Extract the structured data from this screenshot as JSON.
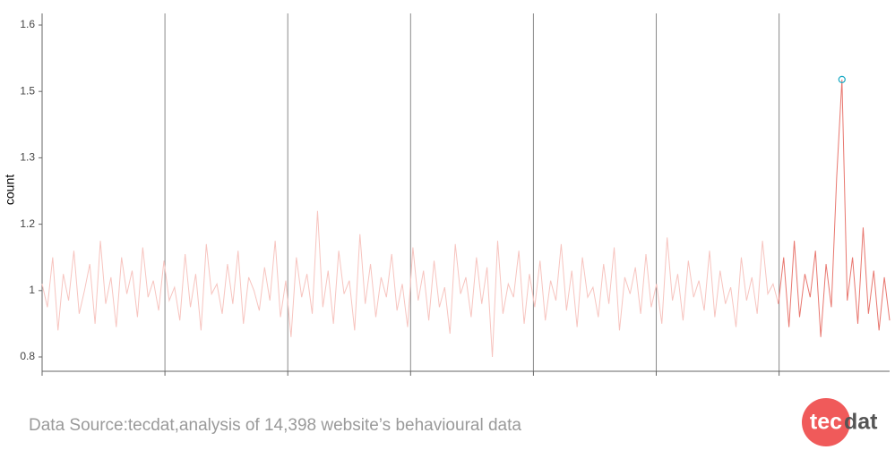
{
  "chart_data": {
    "type": "line",
    "y_label": "count",
    "ylim": [
      0.757,
      1.618
    ],
    "yticks": [
      0.8,
      1,
      1.2,
      1.3,
      1.5,
      1.6
    ],
    "series": [
      {
        "color": "#f7c4bf",
        "values": [
          1.02,
          0.95,
          1.1,
          0.88,
          1.05,
          0.97,
          1.12,
          0.93,
          1.0,
          1.08,
          0.9,
          1.15,
          0.96,
          1.04,
          0.89,
          1.1,
          0.99,
          1.06,
          0.92,
          1.13,
          0.98,
          1.03,
          0.94,
          1.09,
          0.97,
          1.01,
          0.91,
          1.11,
          0.95,
          1.05,
          0.88,
          1.14,
          0.99,
          1.02,
          0.93,
          1.08,
          0.96,
          1.12,
          0.9,
          1.04,
          1.0,
          0.94,
          1.07,
          0.97,
          1.15,
          0.92,
          1.03,
          0.86,
          1.1,
          0.98,
          1.05,
          0.93,
          1.22,
          0.95,
          1.06,
          0.9,
          1.12,
          0.99,
          1.03,
          0.88,
          1.17,
          0.96,
          1.08,
          0.92,
          1.04,
          0.98,
          1.11,
          0.94,
          1.02,
          0.89,
          1.13,
          0.97,
          1.06,
          0.91,
          1.09,
          0.95,
          1.01,
          0.87,
          1.14,
          0.99,
          1.04,
          0.92,
          1.1,
          0.96,
          1.07,
          0.8,
          1.15,
          0.93,
          1.02,
          0.98,
          1.12,
          0.9,
          1.05,
          0.95,
          1.09,
          0.91,
          1.03,
          0.97,
          1.14,
          0.94,
          1.06,
          0.89,
          1.1,
          0.98,
          1.01,
          0.92,
          1.08,
          0.96,
          1.13,
          0.88,
          1.04,
          0.99,
          1.07,
          0.93,
          1.11,
          0.95,
          1.02,
          0.9,
          1.16,
          0.97,
          1.05,
          0.91,
          1.09,
          0.98,
          1.03,
          0.94,
          1.12,
          0.92,
          1.06,
          0.96,
          1.01,
          0.89,
          1.1,
          0.97,
          1.04,
          0.93,
          1.15,
          0.99,
          1.02,
          0.96,
          null,
          null,
          null,
          null,
          null,
          null,
          null,
          null,
          null,
          null,
          null,
          null,
          null,
          null,
          null,
          null,
          null,
          null,
          null,
          null,
          null
        ]
      },
      {
        "color": "#e8776f",
        "highlight_max": {
          "color": "#17a9c4"
        },
        "values": [
          null,
          null,
          null,
          null,
          null,
          null,
          null,
          null,
          null,
          null,
          null,
          null,
          null,
          null,
          null,
          null,
          null,
          null,
          null,
          null,
          null,
          null,
          null,
          null,
          null,
          null,
          null,
          null,
          null,
          null,
          null,
          null,
          null,
          null,
          null,
          null,
          null,
          null,
          null,
          null,
          null,
          null,
          null,
          null,
          null,
          null,
          null,
          null,
          null,
          null,
          null,
          null,
          null,
          null,
          null,
          null,
          null,
          null,
          null,
          null,
          null,
          null,
          null,
          null,
          null,
          null,
          null,
          null,
          null,
          null,
          null,
          null,
          null,
          null,
          null,
          null,
          null,
          null,
          null,
          null,
          null,
          null,
          null,
          null,
          null,
          null,
          null,
          null,
          null,
          null,
          null,
          null,
          null,
          null,
          null,
          null,
          null,
          null,
          null,
          null,
          null,
          null,
          null,
          null,
          null,
          null,
          null,
          null,
          null,
          null,
          null,
          null,
          null,
          null,
          null,
          null,
          null,
          null,
          null,
          null,
          null,
          null,
          null,
          null,
          null,
          null,
          null,
          null,
          null,
          null,
          null,
          null,
          null,
          null,
          null,
          null,
          null,
          null,
          null,
          0.96,
          1.1,
          0.89,
          1.15,
          0.92,
          1.05,
          0.98,
          1.12,
          0.86,
          1.08,
          0.95,
          1.27,
          1.518,
          0.97,
          1.1,
          0.9,
          1.19,
          0.93,
          1.06,
          0.88,
          1.04,
          0.91
        ]
      }
    ]
  },
  "source": "Data Source:tecdat,analysis of 14,398 website’s behavioural data",
  "logo": [
    "tec",
    "dat"
  ]
}
